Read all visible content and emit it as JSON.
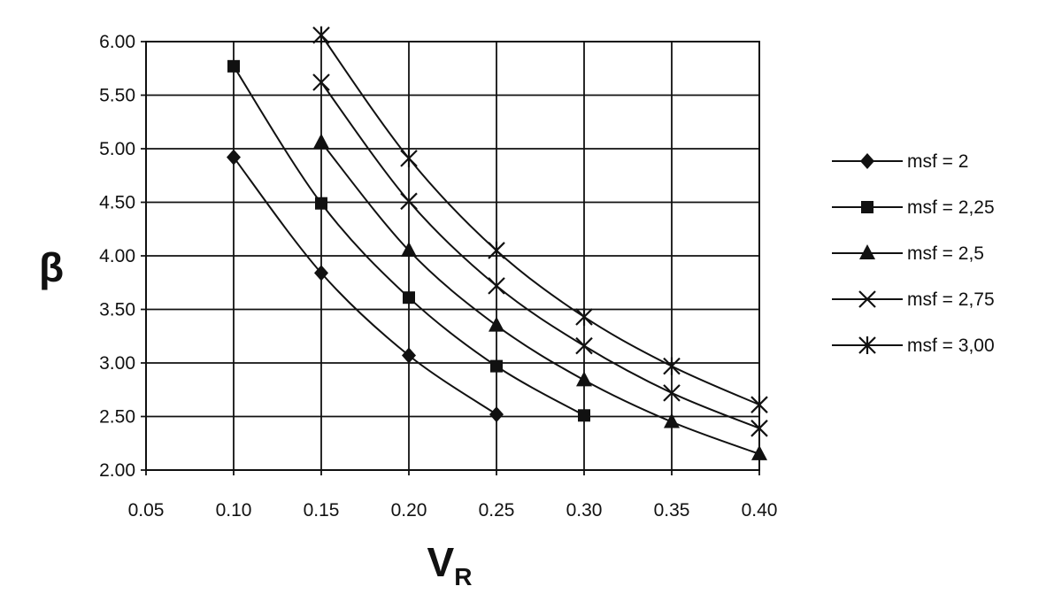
{
  "chart_data": {
    "type": "line",
    "title": "",
    "xlabel": "V",
    "xlabel_sub": "R",
    "ylabel": "β",
    "xlim": [
      0.05,
      0.4
    ],
    "ylim": [
      2.0,
      6.0
    ],
    "x_ticks": [
      "0.05",
      "0.10",
      "0.15",
      "0.20",
      "0.25",
      "0.30",
      "0.35",
      "0.40"
    ],
    "y_ticks": [
      "2.00",
      "2.50",
      "3.00",
      "3.50",
      "4.00",
      "4.50",
      "5.00",
      "5.50",
      "6.00"
    ],
    "grid": true,
    "legend_position": "right",
    "series": [
      {
        "name": "msf = 2",
        "marker": "diamond",
        "x": [
          0.1,
          0.15,
          0.2,
          0.25
        ],
        "y": [
          4.92,
          3.84,
          3.07,
          2.52
        ]
      },
      {
        "name": "msf = 2,25",
        "marker": "square",
        "x": [
          0.1,
          0.15,
          0.2,
          0.25,
          0.3
        ],
        "y": [
          5.77,
          4.49,
          3.61,
          2.97,
          2.51
        ]
      },
      {
        "name": "msf = 2,5",
        "marker": "triangle",
        "x": [
          0.15,
          0.2,
          0.25,
          0.3,
          0.35,
          0.4
        ],
        "y": [
          5.06,
          4.05,
          3.35,
          2.84,
          2.45,
          2.15
        ]
      },
      {
        "name": "msf = 2,75",
        "marker": "x",
        "x": [
          0.15,
          0.2,
          0.25,
          0.3,
          0.35,
          0.4
        ],
        "y": [
          5.62,
          4.51,
          3.72,
          3.16,
          2.72,
          2.39
        ]
      },
      {
        "name": "msf = 3,00",
        "marker": "star",
        "x": [
          0.15,
          0.2,
          0.25,
          0.3,
          0.35,
          0.4
        ],
        "y": [
          6.06,
          4.91,
          4.05,
          3.43,
          2.97,
          2.61
        ]
      }
    ]
  }
}
